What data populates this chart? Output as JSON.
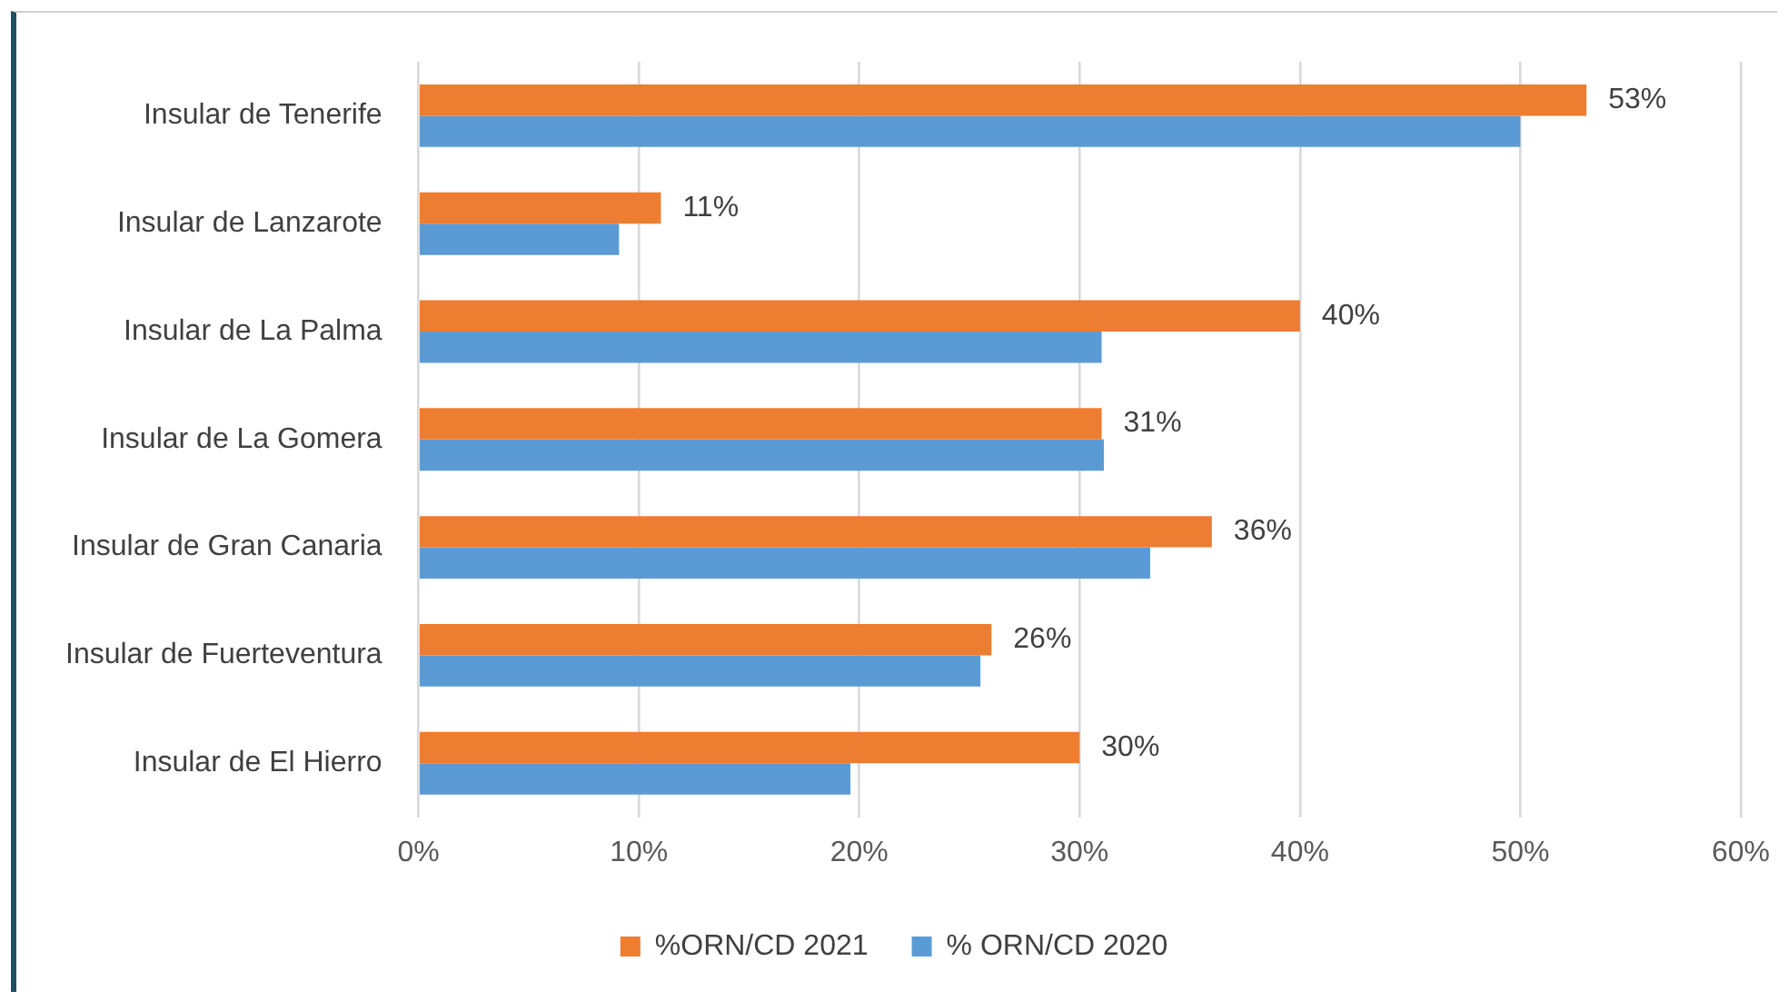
{
  "chart_data": {
    "type": "bar",
    "orientation": "horizontal",
    "categories": [
      "Insular de Tenerife",
      "Insular de Lanzarote",
      "Insular de La Palma",
      "Insular de La Gomera",
      "Insular de Gran Canaria",
      "Insular de Fuerteventura",
      "Insular de El Hierro"
    ],
    "series": [
      {
        "name": "%ORN/CD 2021",
        "color": "#ed7d31",
        "values": [
          53,
          11,
          40,
          31,
          36,
          26,
          30
        ],
        "value_labels": [
          "53%",
          "11%",
          "40%",
          "31%",
          "36%",
          "26%",
          "30%"
        ]
      },
      {
        "name": "% ORN/CD 2020",
        "color": "#5b9bd5",
        "values": [
          50,
          9.1,
          31,
          31.1,
          33.2,
          25.5,
          19.6
        ]
      }
    ],
    "xlim": [
      0,
      60
    ],
    "xticks": [
      {
        "value": 0,
        "label": "0%"
      },
      {
        "value": 10,
        "label": "10%"
      },
      {
        "value": 20,
        "label": "20%"
      },
      {
        "value": 30,
        "label": "30%"
      },
      {
        "value": 40,
        "label": "40%"
      },
      {
        "value": 50,
        "label": "50%"
      },
      {
        "value": 60,
        "label": "60%"
      }
    ],
    "grid": "x",
    "legend": "bottom"
  }
}
